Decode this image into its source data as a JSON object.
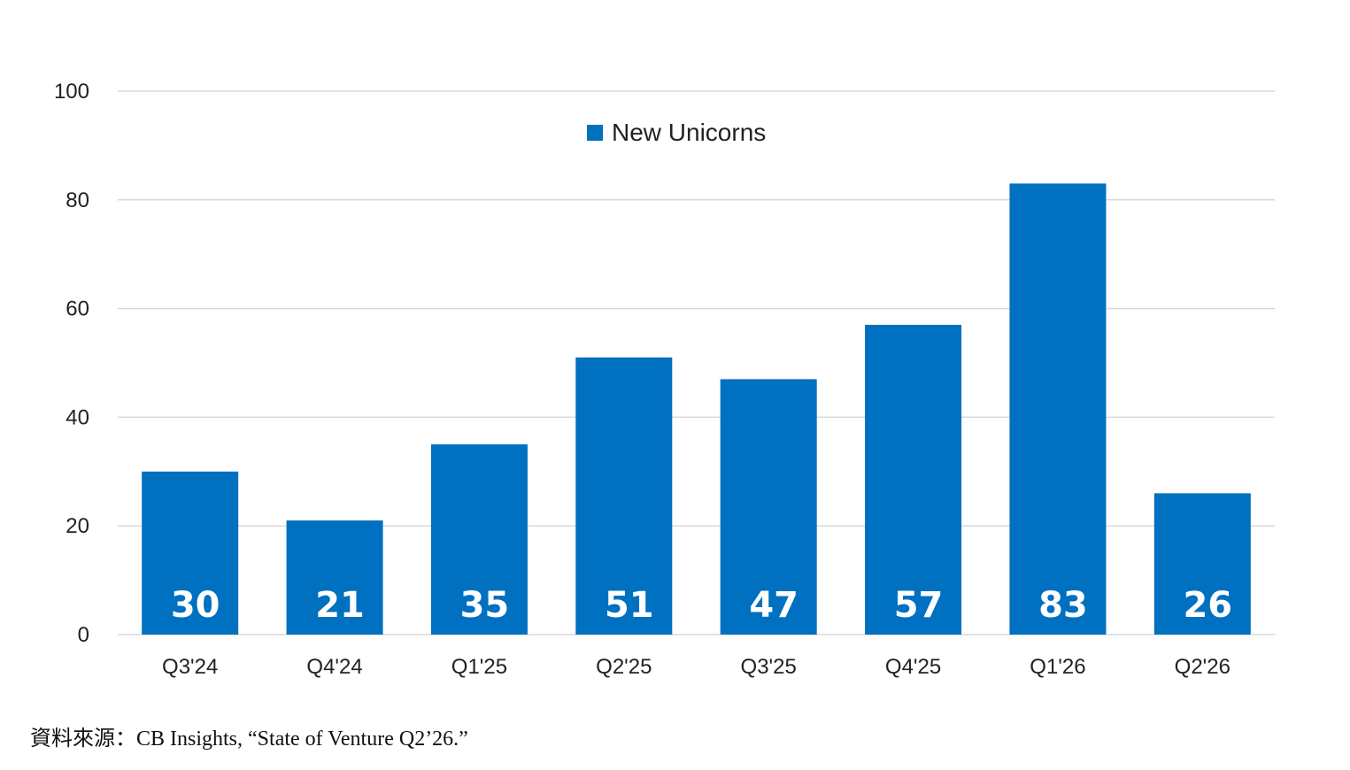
{
  "chart_data": {
    "type": "bar",
    "title": "",
    "xlabel": "",
    "ylabel": "",
    "categories": [
      "Q3'24",
      "Q4'24",
      "Q1'25",
      "Q2'25",
      "Q3'25",
      "Q4'25",
      "Q1'26",
      "Q2'26"
    ],
    "series": [
      {
        "name": "New Unicorns",
        "values": [
          30,
          21,
          35,
          51,
          47,
          57,
          83,
          26
        ],
        "color": "#0070C0"
      }
    ],
    "data_labels": [
      "30",
      "21",
      "35",
      "51",
      "47",
      "57",
      "83",
      "26"
    ],
    "ylim": [
      0,
      100
    ],
    "yticks": [
      0,
      20,
      40,
      60,
      80,
      100
    ],
    "ytick_labels": [
      "0",
      "20",
      "40",
      "60",
      "80",
      "100"
    ],
    "grid": true,
    "grid_color": "#d9d9d9",
    "legend_position": "top-center"
  },
  "source_note": "資料來源：CB Insights, “State of Venture Q2’26.”"
}
